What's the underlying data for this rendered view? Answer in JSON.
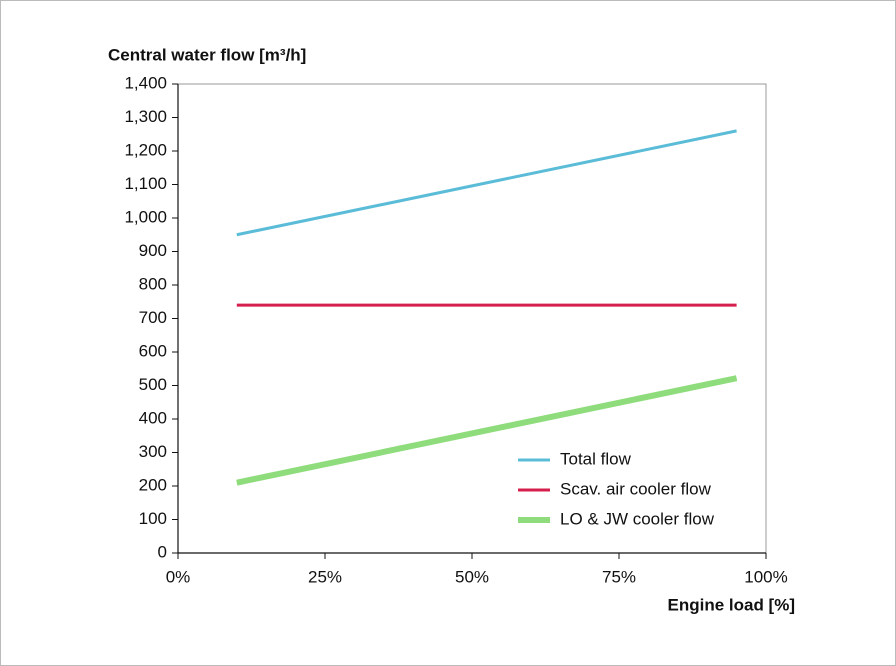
{
  "chart_data": {
    "type": "line",
    "xlabel": "Engine load [%]",
    "ylabel": "Central water flow [m³/h]",
    "series": [
      {
        "name": "Total flow",
        "color": "#5bbcd8",
        "width": 3,
        "x": [
          10,
          95
        ],
        "values": [
          950,
          1260
        ]
      },
      {
        "name": "Scav. air cooler flow",
        "color": "#d41f4c",
        "width": 3,
        "x": [
          10,
          95
        ],
        "values": [
          740,
          740
        ]
      },
      {
        "name": "LO & JW cooler flow",
        "color": "#8fdc7c",
        "width": 6,
        "x": [
          10,
          95
        ],
        "values": [
          210,
          522
        ]
      }
    ],
    "xlim": [
      0,
      100
    ],
    "xticks": [
      {
        "value": 0,
        "label": "0%"
      },
      {
        "value": 25,
        "label": "25%"
      },
      {
        "value": 50,
        "label": "50%"
      },
      {
        "value": 75,
        "label": "75%"
      },
      {
        "value": 100,
        "label": "100%"
      }
    ],
    "ylim": [
      0,
      1400
    ],
    "yticks": [
      0,
      100,
      200,
      300,
      400,
      500,
      600,
      700,
      800,
      900,
      {
        "value": 1000,
        "label": "1,000"
      },
      {
        "value": 1100,
        "label": "1,100"
      },
      {
        "value": 1200,
        "label": "1,200"
      },
      {
        "value": 1300,
        "label": "1,300"
      },
      {
        "value": 1400,
        "label": "1,400"
      }
    ],
    "legend": "lower right",
    "grid": false
  }
}
